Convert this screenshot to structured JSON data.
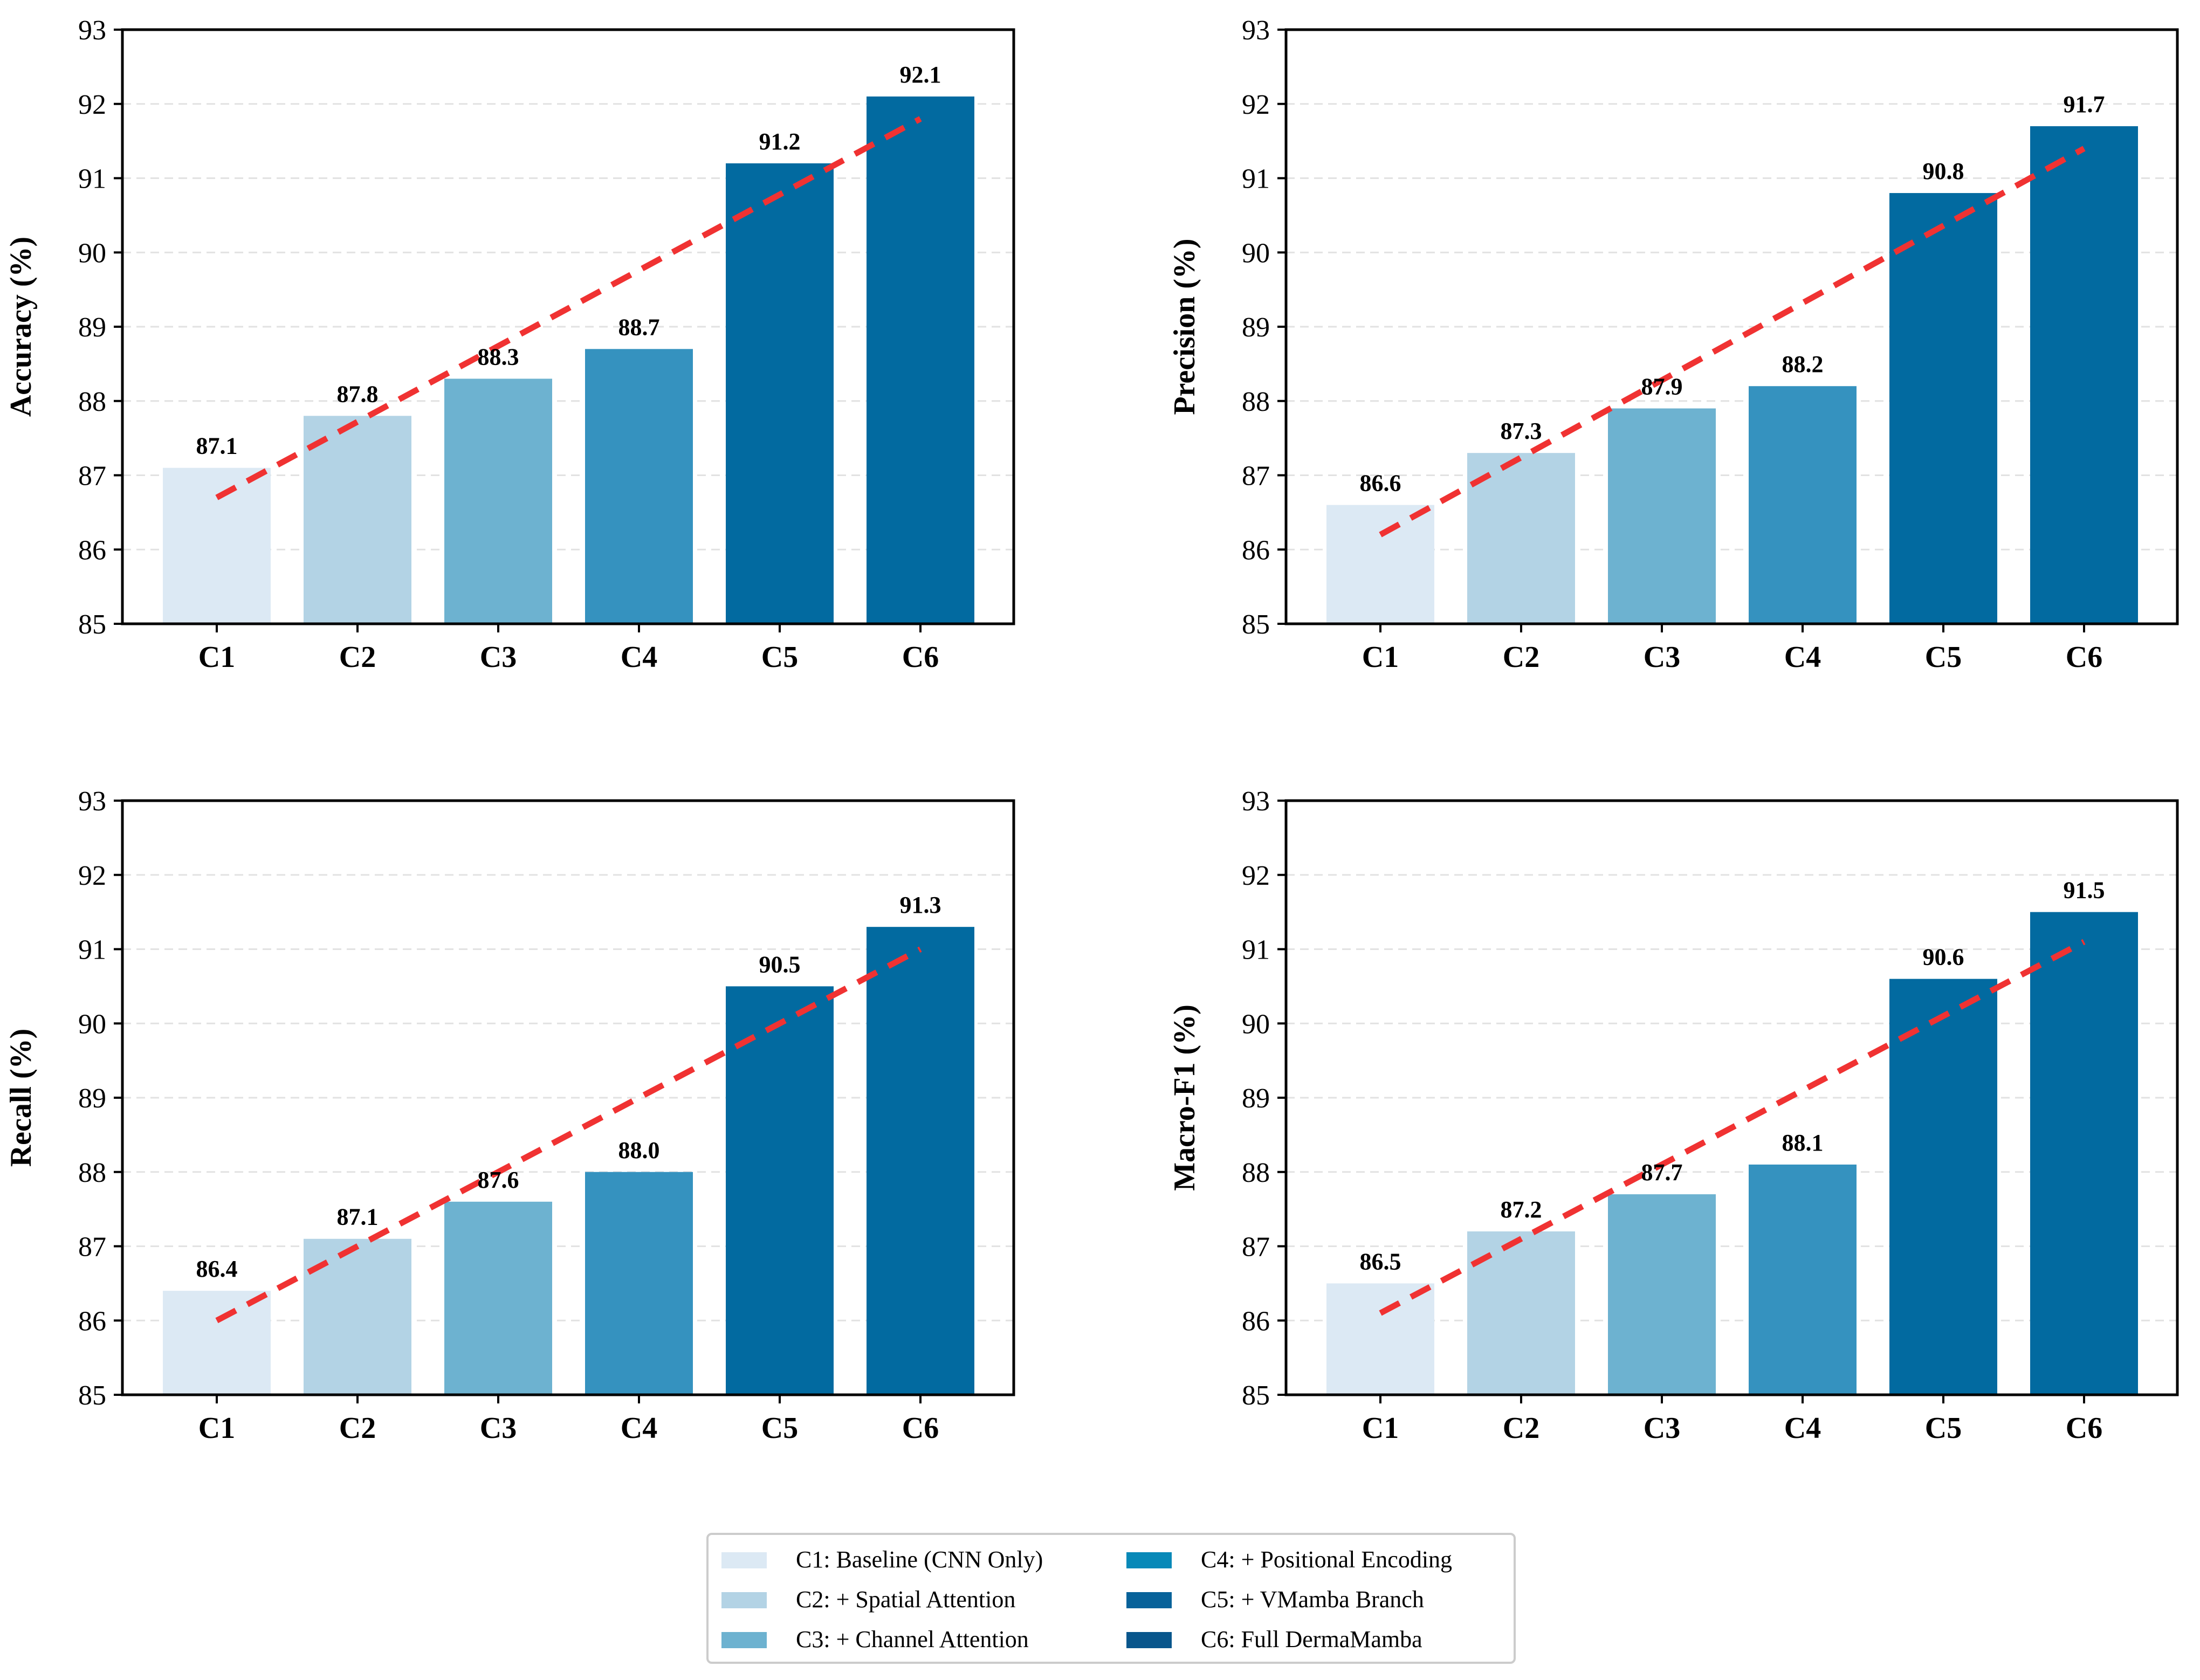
{
  "chart_data": [
    {
      "type": "bar",
      "ylabel": "Accuracy (%)",
      "categories": [
        "C1",
        "C2",
        "C3",
        "C4",
        "C5",
        "C6"
      ],
      "values": [
        87.1,
        87.8,
        88.3,
        88.7,
        91.2,
        92.1
      ],
      "ylim": [
        85,
        93
      ],
      "yticks": [
        85,
        86,
        87,
        88,
        89,
        90,
        91,
        92,
        93
      ],
      "trendline": {
        "style": "dashed",
        "from": 86.7,
        "to": 91.8
      }
    },
    {
      "type": "bar",
      "ylabel": "Precision (%)",
      "categories": [
        "C1",
        "C2",
        "C3",
        "C4",
        "C5",
        "C6"
      ],
      "values": [
        86.6,
        87.3,
        87.9,
        88.2,
        90.8,
        91.7
      ],
      "ylim": [
        85,
        93
      ],
      "yticks": [
        85,
        86,
        87,
        88,
        89,
        90,
        91,
        92,
        93
      ],
      "trendline": {
        "style": "dashed",
        "from": 86.2,
        "to": 91.4
      }
    },
    {
      "type": "bar",
      "ylabel": "Recall (%)",
      "categories": [
        "C1",
        "C2",
        "C3",
        "C4",
        "C5",
        "C6"
      ],
      "values": [
        86.4,
        87.1,
        87.6,
        88.0,
        90.5,
        91.3
      ],
      "ylim": [
        85,
        93
      ],
      "yticks": [
        85,
        86,
        87,
        88,
        89,
        90,
        91,
        92,
        93
      ],
      "trendline": {
        "style": "dashed",
        "from": 86.0,
        "to": 91.0
      }
    },
    {
      "type": "bar",
      "ylabel": "Macro-F1 (%)",
      "categories": [
        "C1",
        "C2",
        "C3",
        "C4",
        "C5",
        "C6"
      ],
      "values": [
        86.5,
        87.2,
        87.7,
        88.1,
        90.6,
        91.5
      ],
      "ylim": [
        85,
        93
      ],
      "yticks": [
        85,
        86,
        87,
        88,
        89,
        90,
        91,
        92,
        93
      ],
      "trendline": {
        "style": "dashed",
        "from": 86.1,
        "to": 91.1
      }
    }
  ],
  "bar_colors": [
    "#dce9f4",
    "#b3d3e5",
    "#6db2d0",
    "#3592bf",
    "#026aa0",
    "#026aa0"
  ],
  "trend_color": "#f03232",
  "legend": [
    {
      "label": "C1: Baseline (CNN Only)",
      "color": "#dce9f4"
    },
    {
      "label": "C2: + Spatial Attention",
      "color": "#b3d3e5"
    },
    {
      "label": "C3: + Channel Attention",
      "color": "#6db2d0"
    },
    {
      "label": "C4: + Positional Encoding",
      "color": "#0889b8"
    },
    {
      "label": "C5: + VMamba Branch",
      "color": "#07629a"
    },
    {
      "label": "C6: Full DermaMamba",
      "color": "#08568c"
    }
  ]
}
